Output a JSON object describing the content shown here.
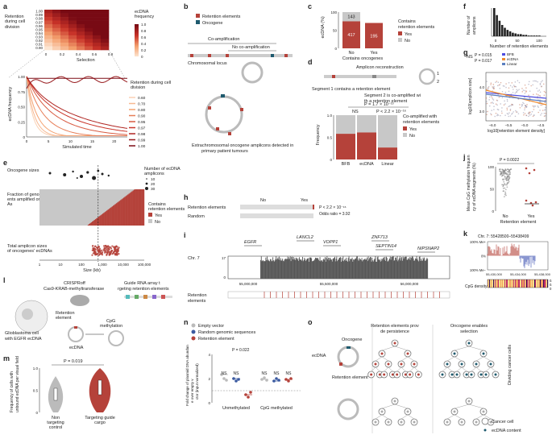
{
  "colors": {
    "red": "#b5423a",
    "grey": "#c8c8c8",
    "dark": "#1e5a6e",
    "purple": "#4c4ce0",
    "orange": "#f08a2c",
    "blue": "#5a7fc0"
  },
  "panel_labels": [
    "a",
    "b",
    "c",
    "d",
    "e",
    "f",
    "g",
    "h",
    "i",
    "j",
    "k",
    "l",
    "m",
    "n",
    "o"
  ],
  "a": {
    "heat_ylabel": "Retention during cell division",
    "heat_yticks": [
      "1.00",
      "0.99",
      "0.98",
      "0.97",
      "0.96",
      "0.95",
      "0.94",
      "0.93",
      "0.92",
      "0.91",
      "0.90"
    ],
    "heat_xticks": [
      "0",
      "0.2",
      "0.4",
      "0.6",
      "0.8"
    ],
    "heat_xlabel": "Selection",
    "heat_legend_title": "ecDNA frequency",
    "heat_legend_ticks": [
      "1.0",
      "0.8",
      "0.6",
      "0.4",
      "0.2",
      "0"
    ],
    "line_ylabel": "ecDNA frequency",
    "line_yticks": [
      "1.00",
      "0.75",
      "0.50",
      "0.25",
      "0"
    ],
    "line_xticks": [
      "0",
      "5",
      "10",
      "15",
      "20"
    ],
    "line_xlabel": "Simulated time",
    "legend_title": "Retention during cell division",
    "legend": [
      "0.60",
      "0.70",
      "0.80",
      "0.90",
      "0.95",
      "0.97",
      "0.98",
      "0.99",
      "1.00"
    ]
  },
  "b": {
    "legend": [
      "Retention elements",
      "Oncogene"
    ],
    "coamp": "Co-amplification",
    "nocoamp": "No co-amplification",
    "locus": "Chromosomal locus",
    "caption": "Extrachromosomal oncogene amplicons detected in primary patient tumours"
  },
  "c": {
    "chart_data": {
      "type": "bar",
      "categories": [
        "No",
        "Yes"
      ],
      "counts_with": [
        417,
        195
      ],
      "counts_without": [
        143,
        0
      ],
      "ylabel": "ecDNA (%)",
      "xlabel": "Contains oncogenes",
      "legend_title": "Contains retention elements",
      "legend": [
        "Yes",
        "No"
      ],
      "yticks": [
        "0",
        "50",
        "100"
      ]
    }
  },
  "d": {
    "title": "Amplicon reconstruction",
    "seg1": "Segment 1 contains a retention element",
    "seg2": "Segment 2 is co-amplified with a retention element",
    "n1": "1",
    "n2": "2",
    "p_top": "P = 1.7 × 10⁻¹³",
    "ns": "NS",
    "p_right": "P < 2.2 × 10⁻¹⁶",
    "chart_data": {
      "type": "bar",
      "categories": [
        "BFB",
        "ecDNA",
        "Linear"
      ],
      "yes": [
        0.58,
        0.61,
        0.27
      ],
      "ylabel": "Frequency",
      "legend_title": "Co-amplified with retention elements",
      "legend": [
        "Yes",
        "No"
      ],
      "yticks": [
        "0",
        "0.5",
        "1.0"
      ]
    }
  },
  "e": {
    "row1": "Oncogene sizes",
    "legend_title": "Number of ecDNA amplicons",
    "sizes": [
      "10",
      "20",
      "30"
    ],
    "row2": "Fraction of genomic segments amplified on ecDNAs",
    "legend_title2": "Contains retention elements",
    "legend2": [
      "Yes",
      "No"
    ],
    "row3": "Total amplicon sizes of oncogenes' ecDNAs",
    "xticks": [
      "1",
      "10",
      "100",
      "1,000",
      "10,000",
      "100,000"
    ],
    "xlabel": "Size (kb)"
  },
  "f": {
    "ylabel": "Number of amplicons",
    "xlabel": "Number of retention elements",
    "xticks": [
      "0",
      "50",
      "100"
    ],
    "chart_data": {
      "type": "bar",
      "values": [
        40,
        30,
        22,
        16,
        12,
        9,
        7,
        5,
        4,
        3,
        3,
        2,
        2,
        1,
        1,
        1,
        1,
        1
      ]
    }
  },
  "g": {
    "ns": "NS",
    "p1": "P = 0.015",
    "p2": "P = 0.017",
    "legend": [
      "BFB",
      "ecDNA",
      "Linear"
    ],
    "stats": [
      "(R = −0.08; −0.19 to 0.03)",
      "(R = −0.25; −0.32 to −0.17)",
      "(R = −0.13; −0.19 to −0.07)"
    ],
    "ylabel": "log10[amplicon size]",
    "xlabel": "log10[retention element density]",
    "xticks": [
      "−6.0",
      "−5.5",
      "−5.0",
      "−4.5"
    ],
    "yticks": [
      "3.0",
      "4.0"
    ]
  },
  "h": {
    "cols": [
      "No",
      "Yes"
    ],
    "rows": [
      "Retention elements",
      "Random"
    ],
    "p": "P < 2.2 × 10⁻¹⁶",
    "or": "Odds ratio = 3.92"
  },
  "i": {
    "chrom": "Chr. 7",
    "genes": [
      "EGFR",
      "LANCL2",
      "VOPP1",
      "ZNF713",
      "SEPTIN14",
      "NIPSNAP2"
    ],
    "yticks": [
      "17",
      "0"
    ],
    "xticks": [
      "55,000,000",
      "55,500,000",
      "56,000,000"
    ],
    "track": "Retention elements"
  },
  "j": {
    "p": "P = 0.0022",
    "ylabel": "Mean CpG methylation frequency of ecDNA segments (%)",
    "yticks": [
      "0",
      "50",
      "100"
    ],
    "xticks": [
      "No",
      "Yes"
    ],
    "xlabel": "Retention element"
  },
  "k": {
    "title": "Chr. 7: 55428500–55438499",
    "yticks": [
      "100% Me+",
      "0%",
      "100% Me−"
    ],
    "xticks": [
      "55,430,000",
      "55,434,000",
      "55,438,000"
    ],
    "cpg": "CpG density",
    "scale": [
      "0.2",
      "0.1",
      "0"
    ]
  },
  "l": {
    "crispr": "CRISPRoff dCas9-KRAB-methyltransferase",
    "guide": "Guide RNA array targeting retention elements",
    "cells": "Glioblastoma cells with EGFR ecDNA",
    "ret": "Retention element",
    "cpg": "CpG methylation",
    "ecdna": "ecDNA"
  },
  "m": {
    "p": "P = 0.019",
    "ylabel": "Frequency of cells with unbound ecDNA per visual field",
    "cats": [
      "Non-targeting control",
      "Targeting guide cargo"
    ],
    "yticks": [
      "0",
      "0.5",
      "1.0"
    ]
  },
  "n": {
    "legend": [
      "Empty vector",
      "Random genomic sequences",
      "Retention element"
    ],
    "p": "P = 0.022",
    "ns": "NS",
    "ylabel": "Fold change of plasmid DNA abundance over empty vector (input normalized)",
    "cats": [
      "Unmethylated",
      "CpG methylated"
    ],
    "yticks": [
      "0",
      "2",
      "4"
    ]
  },
  "o": {
    "t1": "Retention elements provide persistence",
    "t2": "Oncogene enables selection",
    "onc": "Oncogene",
    "ecdna": "ecDNA",
    "ret": "Retention element",
    "dividing": "Dividing cancer cells",
    "cancer": "Cancer cell",
    "content": "ecDNA content"
  }
}
